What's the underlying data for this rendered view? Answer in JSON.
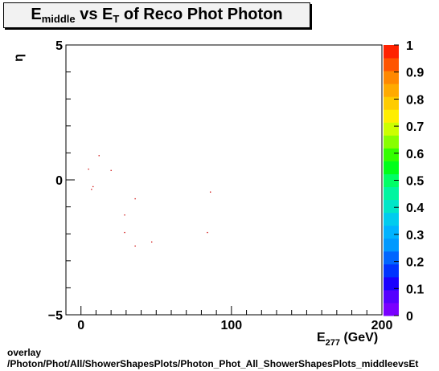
{
  "title": {
    "main": "E",
    "main_sub": "middle",
    "mid": " vs E",
    "mid_sub": "T",
    "rest": " of Reco Phot Photon"
  },
  "footer": {
    "line1": "overlay",
    "line2": "/Photon/Phot/All/ShowerShapesPlots/Photon_Phot_All_ShowerShapesPlots_middleevsEt"
  },
  "chart_data": {
    "type": "scatter",
    "title": "E_middle vs E_T of Reco Phot Photon",
    "xlabel": "E_277 (GeV)",
    "xlabel_main": "E",
    "xlabel_sub": "277",
    "xlabel_rest": " (GeV)",
    "ylabel": "η",
    "xlim": [
      -10,
      200
    ],
    "ylim": [
      -5,
      5
    ],
    "x_ticks": [
      0,
      100,
      200
    ],
    "x_tick_labels": [
      "0",
      "100",
      "200"
    ],
    "y_ticks": [
      -5,
      0,
      5
    ],
    "y_tick_labels": [
      "−5",
      "0",
      "5"
    ],
    "points": [
      {
        "x": 5,
        "y": 0.4
      },
      {
        "x": 12,
        "y": 0.9
      },
      {
        "x": 20,
        "y": 0.35
      },
      {
        "x": 8,
        "y": -0.25
      },
      {
        "x": 7,
        "y": -0.35
      },
      {
        "x": 36,
        "y": -0.7
      },
      {
        "x": 86,
        "y": -0.45
      },
      {
        "x": 29,
        "y": -1.3
      },
      {
        "x": 29,
        "y": -1.95
      },
      {
        "x": 84,
        "y": -1.95
      },
      {
        "x": 47,
        "y": -2.3
      },
      {
        "x": 36,
        "y": -2.45
      }
    ],
    "point_color": "#cc0000",
    "colorbar": {
      "range": [
        0,
        1
      ],
      "tick_labels": [
        "0",
        "0.1",
        "0.2",
        "0.3",
        "0.4",
        "0.5",
        "0.6",
        "0.7",
        "0.8",
        "0.9",
        "1"
      ],
      "colors": [
        "#7a00ff",
        "#5500ff",
        "#1a00ff",
        "#0033ff",
        "#0066ff",
        "#0099ff",
        "#00b3ff",
        "#00ccee",
        "#00e6c8",
        "#00f5a0",
        "#00ff66",
        "#00ff1a",
        "#33ff00",
        "#88ff00",
        "#ccff00",
        "#ffee00",
        "#ffcc00",
        "#ffaa00",
        "#ff8800",
        "#ff5500",
        "#ff2200"
      ]
    }
  }
}
